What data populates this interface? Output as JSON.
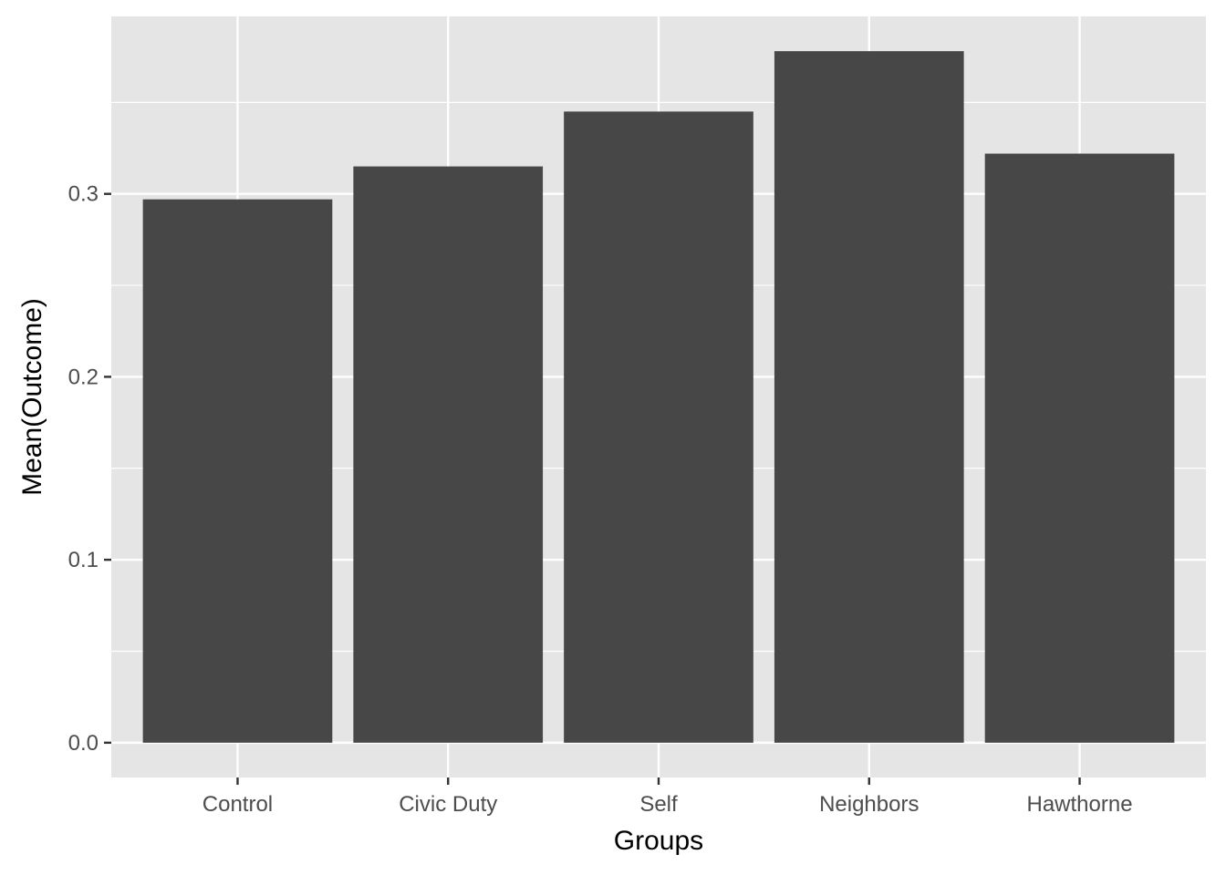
{
  "chart_data": {
    "type": "bar",
    "categories": [
      "Control",
      "Civic Duty",
      "Self",
      "Neighbors",
      "Hawthorne"
    ],
    "values": [
      0.297,
      0.315,
      0.345,
      0.378,
      0.322
    ],
    "xlabel": "Groups",
    "ylabel": "Mean(Outcome)",
    "ylim": [
      -0.019,
      0.397
    ],
    "yticks": [
      0.0,
      0.1,
      0.2,
      0.3
    ],
    "ytick_labels": [
      "0.0",
      "0.1",
      "0.2",
      "0.3"
    ],
    "grid": true,
    "colors": {
      "bar": "#474747",
      "panel": "#e5e5e5",
      "grid": "#ffffff",
      "tick_text": "#4d4d4d",
      "tick_mark": "#333333"
    }
  }
}
